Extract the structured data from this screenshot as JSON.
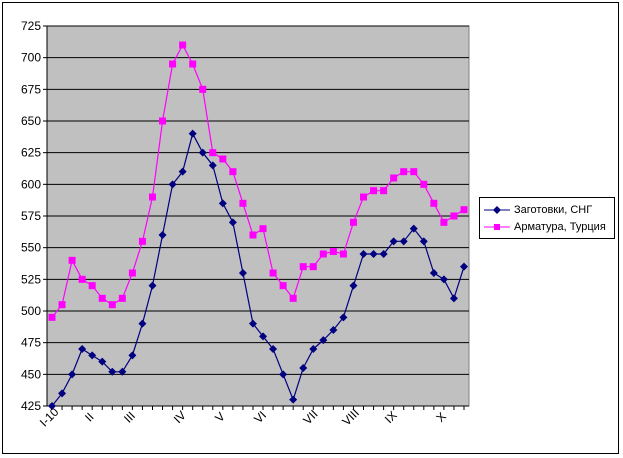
{
  "chart_data": {
    "type": "line",
    "title": "",
    "xlabel": "",
    "ylabel": "",
    "ylim": [
      425,
      725
    ],
    "ytick_step": 25,
    "grid": true,
    "plot_background": "#c0c0c0",
    "legend_position": "right",
    "x_tick_labels": [
      "I-10",
      "II",
      "III",
      "IV",
      "V",
      "VI",
      "VII",
      "VIII",
      "IX",
      "X"
    ],
    "x_tick_at_point_index": [
      0,
      4,
      8,
      13,
      17,
      21,
      26,
      30,
      34,
      39
    ],
    "series": [
      {
        "name": "Заготовки, СНГ",
        "color": "#000080",
        "marker": "diamond",
        "values": [
          425,
          435,
          450,
          470,
          465,
          460,
          452,
          452,
          465,
          490,
          520,
          560,
          600,
          610,
          640,
          625,
          615,
          585,
          570,
          530,
          490,
          480,
          470,
          450,
          430,
          455,
          470,
          477,
          485,
          495,
          520,
          545,
          545,
          545,
          555,
          555,
          565,
          555,
          530,
          525,
          510,
          535
        ]
      },
      {
        "name": "Арматура, Турция",
        "color": "#ff00ff",
        "marker": "square",
        "values": [
          495,
          505,
          540,
          525,
          520,
          510,
          505,
          510,
          530,
          555,
          590,
          650,
          695,
          710,
          695,
          675,
          625,
          620,
          610,
          585,
          560,
          565,
          530,
          520,
          510,
          535,
          535,
          545,
          547,
          545,
          570,
          590,
          595,
          595,
          605,
          610,
          610,
          600,
          585,
          570,
          575,
          580
        ]
      }
    ]
  }
}
